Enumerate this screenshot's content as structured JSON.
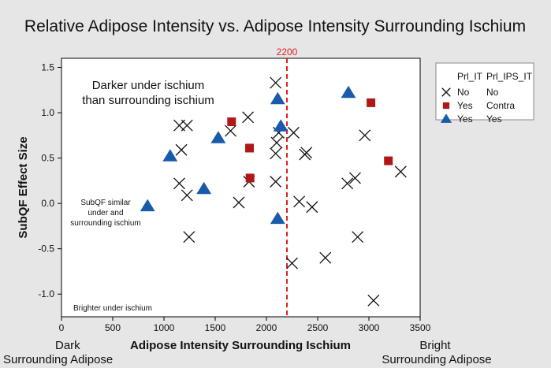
{
  "chart_data": {
    "type": "scatter",
    "title": "Relative Adipose Intensity vs. Adipose Intensity Surrounding Ischium",
    "xlabel": "Adipose Intensity Surrounding Ischium",
    "ylabel": "SubQF Effect Size",
    "xlim": [
      0,
      3500
    ],
    "ylim": [
      -1.25,
      1.6
    ],
    "x_ticks": [
      "0",
      "500",
      "1000",
      "1500",
      "2000",
      "2500",
      "3000",
      "3500"
    ],
    "x_tick_values": [
      0,
      500,
      1000,
      1500,
      2000,
      2500,
      3000,
      3500
    ],
    "y_ticks": [
      "1.5",
      "1.0",
      "0.5",
      "0.0",
      "-0.5",
      "-1.0"
    ],
    "y_tick_values": [
      1.5,
      1.0,
      0.5,
      0.0,
      -0.5,
      -1.0
    ],
    "x_end_labels": {
      "left": [
        "Dark",
        "Surrounding Adipose"
      ],
      "right": [
        "Bright",
        "Surrounding Adipose"
      ]
    },
    "grid": false,
    "reference_line": {
      "x": 2200,
      "label": "2200",
      "color": "#e02020"
    },
    "annotations": [
      {
        "lines": [
          "Darker under ischium",
          "than surrounding ischium"
        ],
        "size": "large"
      },
      {
        "lines": [
          "SubQF similar",
          "under and",
          "surrounding ischium"
        ],
        "size": "small"
      },
      {
        "lines": [
          "Brighter under ischium"
        ],
        "size": "small"
      }
    ],
    "legend": {
      "position": "right",
      "headers": [
        "Prl_IT",
        "Prl_IPS_IT"
      ],
      "entries": [
        {
          "marker": "x",
          "col1": "No",
          "col2": "No",
          "color": "#111111"
        },
        {
          "marker": "square",
          "col1": "Yes",
          "col2": "Contra",
          "color": "#b01818"
        },
        {
          "marker": "triangle",
          "col1": "Yes",
          "col2": "Yes",
          "color": "#1a5aab"
        }
      ]
    },
    "series": [
      {
        "marker": "x",
        "color": "#111111",
        "points": [
          [
            1150,
            0.86
          ],
          [
            1225,
            0.86
          ],
          [
            1170,
            0.59
          ],
          [
            1150,
            0.22
          ],
          [
            1225,
            0.09
          ],
          [
            1245,
            -0.37
          ],
          [
            1650,
            0.8
          ],
          [
            1730,
            0.01
          ],
          [
            1820,
            0.95
          ],
          [
            1830,
            0.24
          ],
          [
            2090,
            1.33
          ],
          [
            2090,
            0.55
          ],
          [
            2090,
            0.24
          ],
          [
            2100,
            0.67
          ],
          [
            2120,
            0.78
          ],
          [
            2265,
            0.78
          ],
          [
            2250,
            -0.66
          ],
          [
            2320,
            0.02
          ],
          [
            2375,
            0.54
          ],
          [
            2390,
            0.56
          ],
          [
            2445,
            -0.04
          ],
          [
            2575,
            -0.6
          ],
          [
            2790,
            0.22
          ],
          [
            2865,
            0.28
          ],
          [
            2890,
            -0.37
          ],
          [
            2960,
            0.75
          ],
          [
            3045,
            -1.07
          ],
          [
            3310,
            0.35
          ]
        ]
      },
      {
        "marker": "square",
        "color": "#b01818",
        "points": [
          [
            1660,
            0.9
          ],
          [
            1835,
            0.61
          ],
          [
            1840,
            0.28
          ],
          [
            3020,
            1.11
          ],
          [
            3190,
            0.47
          ]
        ]
      },
      {
        "marker": "triangle",
        "color": "#1a5aab",
        "points": [
          [
            840,
            -0.03
          ],
          [
            1060,
            0.52
          ],
          [
            1390,
            0.16
          ],
          [
            1530,
            0.72
          ],
          [
            2110,
            1.15
          ],
          [
            2140,
            0.85
          ],
          [
            2110,
            -0.17
          ],
          [
            2800,
            1.22
          ]
        ]
      }
    ]
  }
}
